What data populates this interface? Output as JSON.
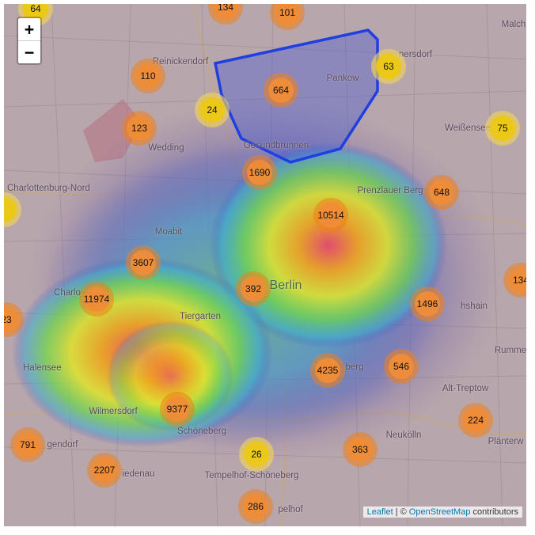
{
  "controls": {
    "zoom_in": "+",
    "zoom_out": "−"
  },
  "attribution": {
    "leaflet": "Leaflet",
    "separator": "| ©",
    "osm": "OpenStreetMap",
    "suffix": "contributors"
  },
  "places": [
    {
      "key": "reinickendorf",
      "label": "Reinickendorf"
    },
    {
      "key": "pankow",
      "label": "Pankow"
    },
    {
      "key": "gesundbrunnen",
      "label": "Gesundbrunnen"
    },
    {
      "key": "wedding",
      "label": "Wedding"
    },
    {
      "key": "charlottenburg-nord",
      "label": "Charlottenburg-Nord"
    },
    {
      "key": "prenzlauer-berg",
      "label": "Prenzlauer Berg"
    },
    {
      "key": "moabit",
      "label": "Moabit"
    },
    {
      "key": "berlin",
      "label": "Berlin"
    },
    {
      "key": "tiergarten",
      "label": "Tiergarten"
    },
    {
      "key": "halensee",
      "label": "Halensee"
    },
    {
      "key": "wilmersdorf",
      "label": "Wilmersdorf"
    },
    {
      "key": "schoneberg",
      "label": "Schöneberg"
    },
    {
      "key": "tempelhof-schoneberg",
      "label": "Tempelhof-Schöneberg"
    },
    {
      "key": "neukolln",
      "label": "Neukölln"
    },
    {
      "key": "alt-treptow",
      "label": "Alt-Treptow"
    },
    {
      "key": "weissensee",
      "label": "Weißensee"
    },
    {
      "key": "malch",
      "label": "Malch"
    },
    {
      "key": "planterwald",
      "label": "Plänterw"
    },
    {
      "key": "rummels",
      "label": "Rumme"
    },
    {
      "key": "friedrichshain",
      "label": "hshain"
    },
    {
      "key": "kreuzberg",
      "label": "berg"
    },
    {
      "key": "nedenau",
      "label": "iedenau"
    },
    {
      "key": "pelhof",
      "label": "pelhof"
    },
    {
      "key": "gendorf",
      "label": "gendorf"
    },
    {
      "key": "charlo",
      "label": "Charlo"
    },
    {
      "key": "nersdorf",
      "label": "nersdorf"
    }
  ],
  "clusters": [
    {
      "count": "64",
      "color": "yellow"
    },
    {
      "count": "134",
      "color": "orange"
    },
    {
      "count": "101",
      "color": "orange"
    },
    {
      "count": "110",
      "color": "orange"
    },
    {
      "count": "664",
      "color": "orange"
    },
    {
      "count": "63",
      "color": "yellow"
    },
    {
      "count": "24",
      "color": "yellow"
    },
    {
      "count": "123",
      "color": "orange"
    },
    {
      "count": "75",
      "color": "yellow"
    },
    {
      "count": "1690",
      "color": "orange"
    },
    {
      "count": "648",
      "color": "orange"
    },
    {
      "count": "10514",
      "color": "orange"
    },
    {
      "count": "3607",
      "color": "orange"
    },
    {
      "count": "134",
      "color": "orange"
    },
    {
      "count": "392",
      "color": "orange"
    },
    {
      "count": "11974",
      "color": "orange"
    },
    {
      "count": "1496",
      "color": "orange"
    },
    {
      "count": "23",
      "color": "orange"
    },
    {
      "count": "4235",
      "color": "orange"
    },
    {
      "count": "546",
      "color": "orange"
    },
    {
      "count": "9377",
      "color": "orange"
    },
    {
      "count": "224",
      "color": "orange"
    },
    {
      "count": "791",
      "color": "orange"
    },
    {
      "count": "26",
      "color": "yellow"
    },
    {
      "count": "363",
      "color": "orange"
    },
    {
      "count": "2207",
      "color": "orange"
    },
    {
      "count": "286",
      "color": "orange"
    },
    {
      "count": "",
      "color": "yellow"
    }
  ],
  "polygon": {
    "stroke": "#1f3fe0",
    "fill": "#3a4fd6"
  },
  "heatmap": {
    "hot": "#e8486b",
    "warm": "#f2e020",
    "mid": "#6cd94a",
    "cool": "#3aa6d8",
    "cold": "#3848c8"
  }
}
